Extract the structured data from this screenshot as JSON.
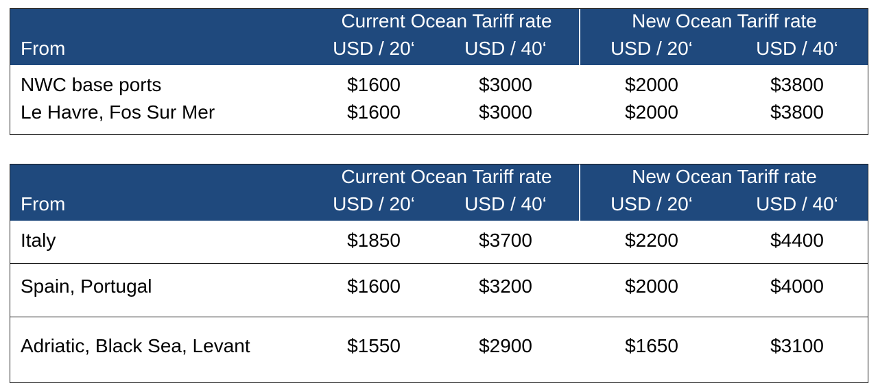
{
  "colors": {
    "header_bg": "#1f497d",
    "header_text": "#ffffff",
    "border": "#1a1a1a",
    "body_text": "#000000"
  },
  "tables": [
    {
      "header": {
        "current_group": "Current Ocean Tariff rate",
        "new_group": "New Ocean Tariff rate",
        "from": "From",
        "columns": [
          "USD / 20‘",
          "USD / 40‘",
          "USD / 20‘",
          "USD / 40‘"
        ]
      },
      "rows": [
        {
          "from": "NWC base ports",
          "values": [
            "$1600",
            "$3000",
            "$2000",
            "$3800"
          ]
        },
        {
          "from": "Le Havre, Fos Sur Mer",
          "values": [
            "$1600",
            "$3000",
            "$2000",
            "$3800"
          ]
        }
      ]
    },
    {
      "header": {
        "current_group": "Current Ocean Tariff rate",
        "new_group": "New Ocean Tariff rate",
        "from": "From",
        "columns": [
          "USD / 20‘",
          "USD / 40‘",
          "USD / 20‘",
          "USD / 40‘"
        ]
      },
      "rows": [
        {
          "from": "Italy",
          "values": [
            "$1850",
            "$3700",
            "$2200",
            "$4400"
          ]
        },
        {
          "from": "Spain, Portugal",
          "values": [
            "$1600",
            "$3200",
            "$2000",
            "$4000"
          ]
        },
        {
          "from": "Adriatic, Black Sea, Levant",
          "values": [
            "$1550",
            "$2900",
            "$1650",
            "$3100"
          ]
        }
      ]
    }
  ]
}
